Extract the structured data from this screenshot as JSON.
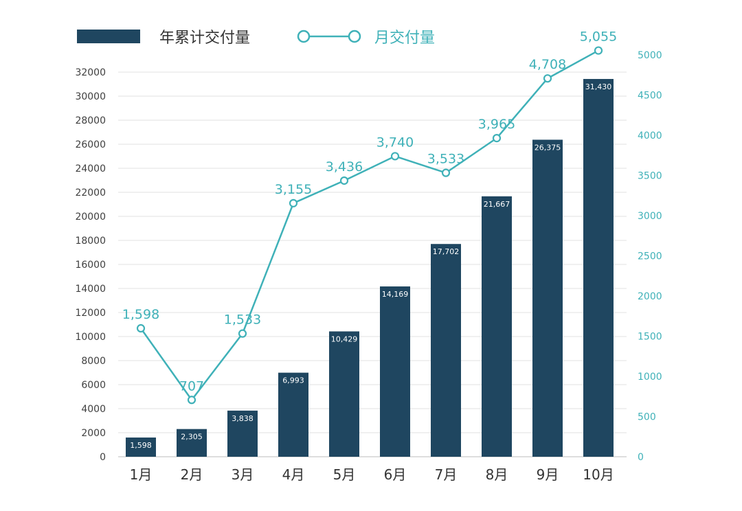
{
  "chart_data": {
    "type": "bar+line",
    "categories": [
      "1月",
      "2月",
      "3月",
      "4月",
      "5月",
      "6月",
      "7月",
      "8月",
      "9月",
      "10月"
    ],
    "series": [
      {
        "name": "年累计交付量",
        "type": "bar",
        "axis": "left",
        "values": [
          1598,
          2305,
          3838,
          6993,
          10429,
          14169,
          17702,
          21667,
          26375,
          31430
        ],
        "labels": [
          "1,598",
          "2,305",
          "3,838",
          "6,993",
          "10,429",
          "14,169",
          "17,702",
          "21,667",
          "26,375",
          "31,430"
        ],
        "color": "#1f4660"
      },
      {
        "name": "月交付量",
        "type": "line",
        "axis": "right",
        "values": [
          1598,
          707,
          1533,
          3155,
          3436,
          3740,
          3533,
          3965,
          4708,
          5055
        ],
        "labels": [
          "1,598",
          "707",
          "1,533",
          "3,155",
          "3,436",
          "3,740",
          "3,533",
          "3,965",
          "4,708",
          "5,055"
        ],
        "color": "#3fb1b8"
      }
    ],
    "y_left": {
      "ylim": [
        0,
        32000
      ],
      "ticks": [
        "0",
        "2000",
        "4000",
        "6000",
        "8000",
        "10000",
        "12000",
        "14000",
        "16000",
        "18000",
        "20000",
        "22000",
        "24000",
        "26000",
        "28000",
        "30000",
        "32000"
      ]
    },
    "y_right": {
      "ylim": [
        0,
        5000
      ],
      "ticks": [
        "0",
        "500",
        "1000",
        "1500",
        "2000",
        "2500",
        "3000",
        "3500",
        "4000",
        "4500",
        "5000"
      ]
    },
    "grid": true,
    "legend": "top-left"
  }
}
